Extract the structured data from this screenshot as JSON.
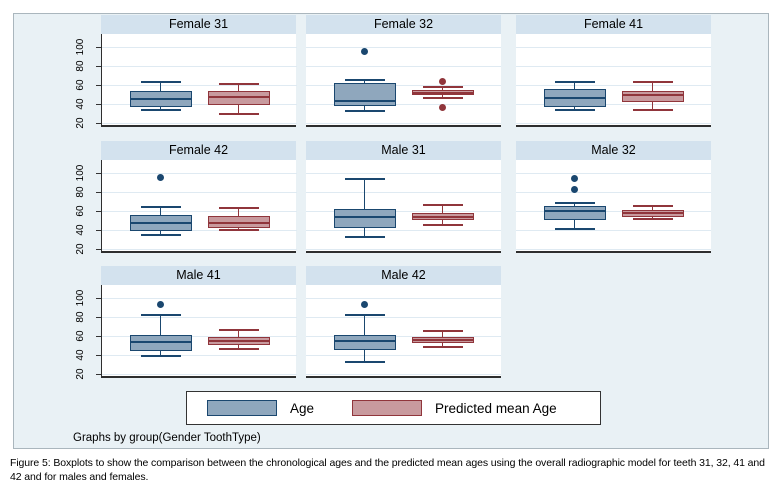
{
  "caption": "Figure 5: Boxplots to show the comparison between the chronological ages and the predicted mean ages using the overall radiographic model for teeth 31, 32, 41 and 42 and for males and females.",
  "colors": {
    "figure_background": "#e9f1f5",
    "panel_title_strip": "#d3e2ee",
    "plot_background": "#ffffff",
    "gridline": "#dfeaf2",
    "axis": "#2e2e2e",
    "age_fill": "#8fa7bd",
    "age_stroke": "#1a476f",
    "predicted_fill": "#c89a9e",
    "predicted_stroke": "#90353b"
  },
  "chart_data": {
    "type": "boxplot",
    "layout": "3x3 grid of small multiples (8 panels, last cell empty), shared rotated y-axis per row",
    "title": "",
    "xlabel": "",
    "ylabel": "",
    "y_ticks": [
      20,
      40,
      60,
      80,
      100
    ],
    "ylim": [
      14,
      114
    ],
    "grid": true,
    "legend_position": "bottom-center",
    "note": "Graphs by group(Gender ToothType)",
    "series": [
      {
        "name": "Age",
        "fill": "#8fa7bd",
        "stroke": "#1a476f"
      },
      {
        "name": "Predicted mean Age",
        "fill": "#c89a9e",
        "stroke": "#90353b"
      }
    ],
    "panels": [
      {
        "title": "Female 31",
        "boxes": [
          {
            "series": "Age",
            "low": 34,
            "q1": 37,
            "median": 45,
            "q3": 54,
            "high": 63,
            "outliers": []
          },
          {
            "series": "Predicted mean Age",
            "low": 30,
            "q1": 39,
            "median": 47,
            "q3": 54,
            "high": 61,
            "outliers": []
          }
        ]
      },
      {
        "title": "Female 32",
        "boxes": [
          {
            "series": "Age",
            "low": 33,
            "q1": 38,
            "median": 43,
            "q3": 62,
            "high": 65,
            "outliers": [
              95
            ]
          },
          {
            "series": "Predicted mean Age",
            "low": 46,
            "q1": 49,
            "median": 52,
            "q3": 55,
            "high": 58,
            "outliers": [
              36,
              64
            ]
          }
        ]
      },
      {
        "title": "Female 41",
        "boxes": [
          {
            "series": "Age",
            "low": 34,
            "q1": 37,
            "median": 46,
            "q3": 56,
            "high": 63,
            "outliers": []
          },
          {
            "series": "Predicted mean Age",
            "low": 34,
            "q1": 42,
            "median": 49,
            "q3": 54,
            "high": 63,
            "outliers": []
          }
        ]
      },
      {
        "title": "Female 42",
        "boxes": [
          {
            "series": "Age",
            "low": 35,
            "q1": 39,
            "median": 47,
            "q3": 56,
            "high": 64,
            "outliers": [
              95
            ]
          },
          {
            "series": "Predicted mean Age",
            "low": 40,
            "q1": 42,
            "median": 47,
            "q3": 55,
            "high": 63,
            "outliers": []
          }
        ]
      },
      {
        "title": "Male 31",
        "boxes": [
          {
            "series": "Age",
            "low": 33,
            "q1": 42,
            "median": 54,
            "q3": 62,
            "high": 94,
            "outliers": []
          },
          {
            "series": "Predicted mean Age",
            "low": 45,
            "q1": 51,
            "median": 54,
            "q3": 58,
            "high": 66,
            "outliers": []
          }
        ]
      },
      {
        "title": "Male 32",
        "boxes": [
          {
            "series": "Age",
            "low": 41,
            "q1": 51,
            "median": 60,
            "q3": 65,
            "high": 68,
            "outliers": [
              83,
              94
            ]
          },
          {
            "series": "Predicted mean Age",
            "low": 52,
            "q1": 54,
            "median": 58,
            "q3": 61,
            "high": 65,
            "outliers": []
          }
        ]
      },
      {
        "title": "Male 41",
        "boxes": [
          {
            "series": "Age",
            "low": 39,
            "q1": 44,
            "median": 54,
            "q3": 61,
            "high": 82,
            "outliers": [
              93
            ]
          },
          {
            "series": "Predicted mean Age",
            "low": 46,
            "q1": 50,
            "median": 55,
            "q3": 59,
            "high": 66,
            "outliers": []
          }
        ]
      },
      {
        "title": "Male 42",
        "boxes": [
          {
            "series": "Age",
            "low": 33,
            "q1": 45,
            "median": 55,
            "q3": 61,
            "high": 82,
            "outliers": [
              93
            ]
          },
          {
            "series": "Predicted mean Age",
            "low": 48,
            "q1": 53,
            "median": 56,
            "q3": 59,
            "high": 65,
            "outliers": []
          }
        ]
      }
    ]
  }
}
